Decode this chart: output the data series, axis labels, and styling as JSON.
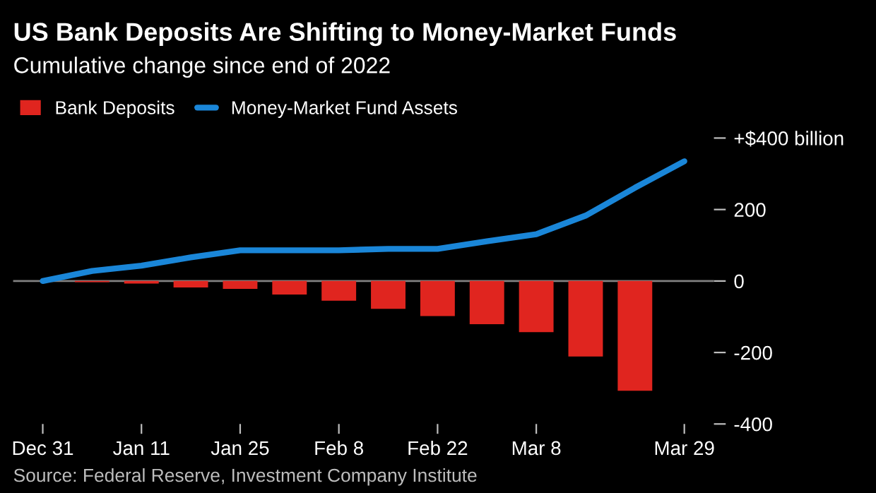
{
  "chart_data": {
    "type": "bar",
    "title": "US Bank Deposits Are Shifting to Money-Market Funds",
    "subtitle": "Cumulative change since end of 2022",
    "categories": [
      "Dec 31",
      null,
      "Jan 11",
      null,
      "Jan 25",
      null,
      "Feb 8",
      null,
      "Feb 22",
      null,
      "Mar 8",
      null,
      null,
      "Mar 29"
    ],
    "series": [
      {
        "name": "Bank Deposits",
        "color": "#e0251f",
        "values": [
          null,
          -3,
          -7,
          -18,
          -22,
          -38,
          -55,
          -78,
          -98,
          -121,
          -143,
          -211,
          -307,
          null
        ]
      },
      {
        "name": "Money-Market Fund Assets",
        "type": "line",
        "color": "#1a86d8",
        "values": [
          0,
          28,
          43,
          66,
          86,
          86,
          86,
          90,
          90,
          111,
          131,
          183,
          261,
          335
        ]
      }
    ],
    "ylim": [
      -400,
      400
    ],
    "yticks": [
      {
        "value": 400,
        "label": "+$400 billion"
      },
      200,
      0,
      -200,
      -400
    ],
    "ref_lines": [
      {
        "axis": "y",
        "value": 0,
        "color": "#808080"
      }
    ],
    "grid": false,
    "legend": "top left",
    "marker": "none",
    "line_style": "solid",
    "annotations": [
      "Source: Federal Reserve, Investment Company Institute"
    ]
  }
}
